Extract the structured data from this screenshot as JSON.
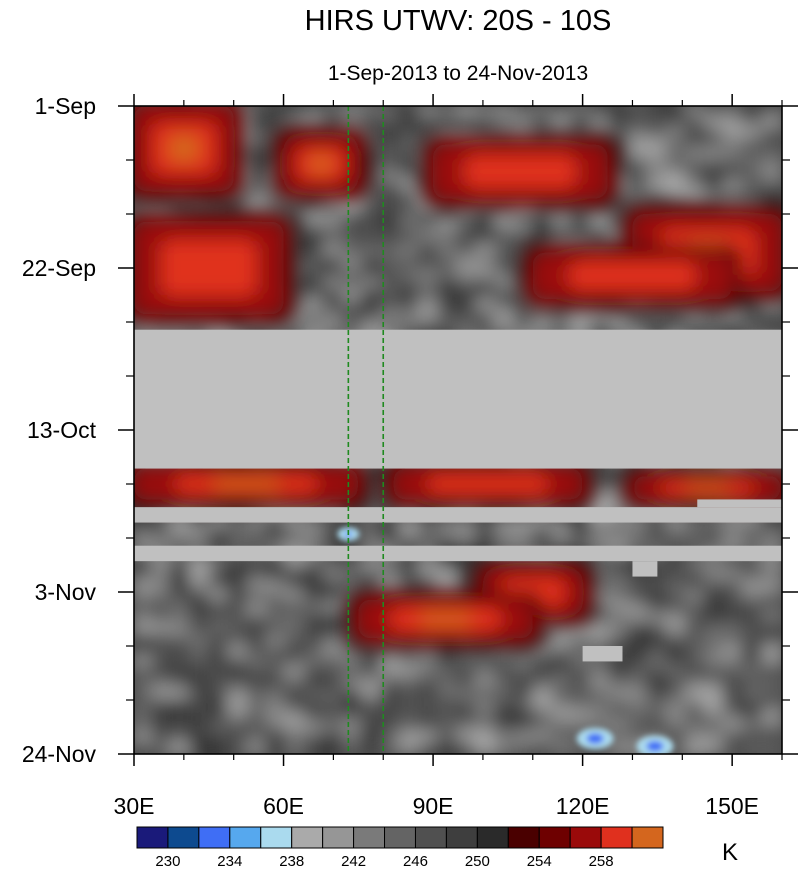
{
  "chart_data": {
    "type": "heatmap",
    "title": "HIRS UTWV: 20S - 10S",
    "subtitle": "1-Sep-2013 to 24-Nov-2013",
    "x_axis": {
      "range": [
        30,
        160
      ],
      "ticks": [
        30,
        60,
        90,
        120,
        150
      ],
      "tick_labels": [
        "30E",
        "60E",
        "90E",
        "120E",
        "150E"
      ]
    },
    "y_axis": {
      "range": [
        "2013-09-01",
        "2013-11-24"
      ],
      "reversed": true,
      "ticks": [
        "2013-09-01",
        "2013-09-22",
        "2013-10-13",
        "2013-11-03",
        "2013-11-24"
      ],
      "tick_labels": [
        "1-Sep",
        "22-Sep",
        "13-Oct",
        "3-Nov",
        "24-Nov"
      ]
    },
    "reference_lines_x": [
      73,
      80
    ],
    "missing_data": [
      {
        "x": [
          30,
          160
        ],
        "y": [
          "2013-09-30",
          "2013-10-18"
        ]
      },
      {
        "x": [
          30,
          160
        ],
        "y": [
          "2013-10-23",
          "2013-10-25"
        ]
      },
      {
        "x": [
          30,
          160
        ],
        "y": [
          "2013-10-28",
          "2013-10-30"
        ]
      },
      {
        "x": [
          143,
          160
        ],
        "y": [
          "2013-10-22",
          "2013-10-23"
        ]
      },
      {
        "x": [
          130,
          135
        ],
        "y": [
          "2013-10-30",
          "2013-11-01"
        ]
      },
      {
        "x": [
          120,
          128
        ],
        "y": [
          "2013-11-10",
          "2013-11-12"
        ]
      }
    ],
    "warm_regions": [
      {
        "x": [
          30,
          50
        ],
        "y": [
          "2013-09-01",
          "2013-09-12"
        ]
      },
      {
        "x": [
          30,
          60
        ],
        "y": [
          "2013-09-16",
          "2013-09-28"
        ]
      },
      {
        "x": [
          60,
          75
        ],
        "y": [
          "2013-09-05",
          "2013-09-12"
        ]
      },
      {
        "x": [
          90,
          125
        ],
        "y": [
          "2013-09-06",
          "2013-09-13"
        ]
      },
      {
        "x": [
          130,
          160
        ],
        "y": [
          "2013-09-15",
          "2013-09-25"
        ]
      },
      {
        "x": [
          110,
          150
        ],
        "y": [
          "2013-09-20",
          "2013-09-26"
        ]
      },
      {
        "x": [
          30,
          75
        ],
        "y": [
          "2013-10-18",
          "2013-10-22"
        ]
      },
      {
        "x": [
          82,
          120
        ],
        "y": [
          "2013-10-18",
          "2013-10-22"
        ]
      },
      {
        "x": [
          130,
          160
        ],
        "y": [
          "2013-10-19",
          "2013-10-22"
        ]
      },
      {
        "x": [
          100,
          120
        ],
        "y": [
          "2013-10-31",
          "2013-11-06"
        ]
      },
      {
        "x": [
          75,
          110
        ],
        "y": [
          "2013-11-04",
          "2013-11-09"
        ]
      }
    ],
    "cold_spots": [
      {
        "x": [
          120,
          125
        ],
        "y": [
          "2013-11-21",
          "2013-11-23"
        ]
      },
      {
        "x": [
          132,
          137
        ],
        "y": [
          "2013-11-22",
          "2013-11-24"
        ]
      },
      {
        "x": [
          72,
          74
        ],
        "y": [
          "2013-10-26",
          "2013-10-27"
        ]
      }
    ],
    "colorbar": {
      "unit": "K",
      "levels": [
        230,
        232,
        234,
        236,
        238,
        240,
        242,
        244,
        246,
        248,
        250,
        252,
        254,
        256,
        258
      ],
      "labeled_levels": [
        230,
        234,
        238,
        242,
        246,
        250,
        254,
        258
      ],
      "colors": [
        "#1a1a7a",
        "#0d4a8f",
        "#3f6ef5",
        "#56a8ee",
        "#aadaee",
        "#aaaaaa",
        "#969696",
        "#7a7a7a",
        "#646464",
        "#505050",
        "#3e3e3e",
        "#2a2a2a",
        "#4a0000",
        "#6e0000",
        "#9a0a0a",
        "#e0301e",
        "#d4661e"
      ]
    },
    "colors": {
      "missing": "#c0c0c0",
      "reference_line": "#1f8a1f"
    }
  }
}
